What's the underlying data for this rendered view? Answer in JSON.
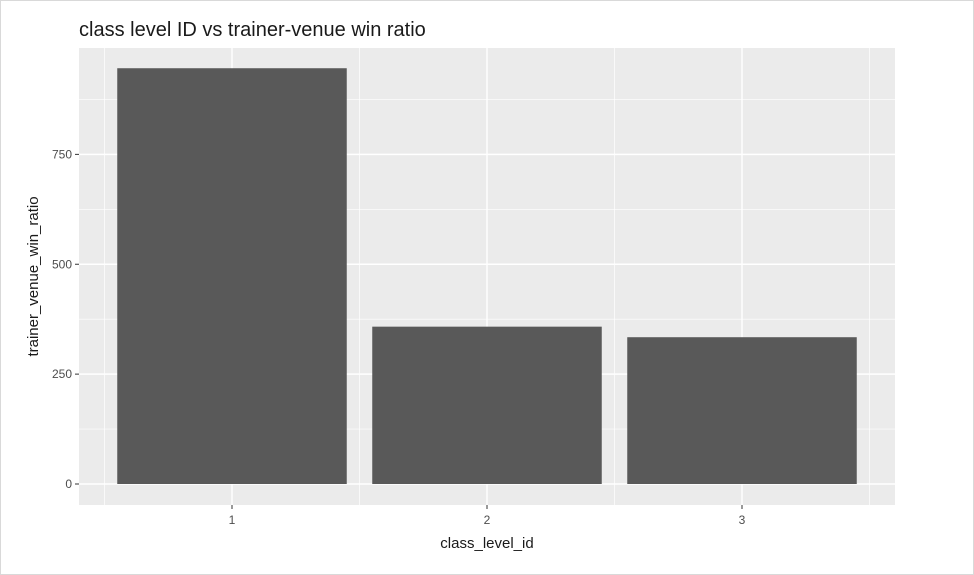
{
  "chart_data": {
    "type": "bar",
    "title": "class level ID vs trainer-venue win ratio",
    "xlabel": "class_level_id",
    "ylabel": "trainer_venue_win_ratio",
    "categories": [
      "1",
      "2",
      "3"
    ],
    "values": [
      946,
      358,
      334
    ],
    "ylim": [
      0,
      990
    ],
    "yticks": [
      0,
      250,
      500,
      750
    ],
    "yticks_labels": [
      "0",
      "250",
      "500",
      "750"
    ],
    "grid": true,
    "legend": "none",
    "colors": {
      "panel": "#ebebeb",
      "grid_major": "#ffffff",
      "bar": "#595959"
    }
  }
}
